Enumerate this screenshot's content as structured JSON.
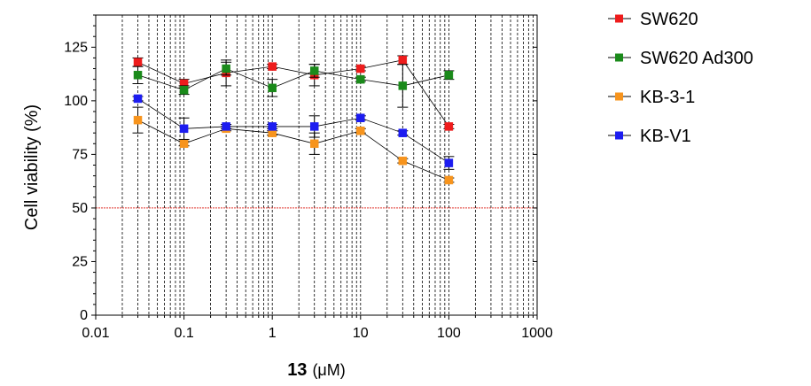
{
  "chart_data": {
    "type": "scatter",
    "xscale": "log",
    "xlim": [
      0.01,
      1000
    ],
    "ylim": [
      0,
      140
    ],
    "xticks": [
      0.01,
      0.1,
      1,
      10,
      100,
      1000
    ],
    "xtick_labels": [
      "0.01",
      "0.1",
      "1",
      "10",
      "100",
      "1000"
    ],
    "yticks": [
      0,
      25,
      50,
      75,
      100,
      125
    ],
    "ytick_labels": [
      "0",
      "25",
      "50",
      "75",
      "100",
      "125"
    ],
    "ylabel": "Cell viability (%)",
    "xlabel_compound": "13",
    "xlabel_unit": "(μM)",
    "grid": "vertical dashed",
    "reference_line": {
      "y": 50,
      "color": "#e0302a"
    },
    "legend_position": "right",
    "x": [
      0.03,
      0.1,
      0.3,
      1,
      3,
      10,
      30,
      100
    ],
    "series": [
      {
        "name": "SW620",
        "color": "#ee1c1c",
        "values": [
          118,
          108,
          113,
          116,
          112,
          115,
          119,
          88
        ],
        "errors": [
          2,
          2,
          6,
          1,
          5,
          1,
          2,
          1
        ]
      },
      {
        "name": "SW620 Ad300",
        "color": "#1a8a1a",
        "values": [
          112,
          105,
          115,
          106,
          114,
          110,
          107,
          112
        ],
        "errors": [
          4,
          2,
          3,
          4,
          3,
          1,
          10,
          2
        ]
      },
      {
        "name": "KB-3-1",
        "color": "#f7941d",
        "values": [
          91,
          80,
          87,
          85,
          80,
          86,
          72,
          63
        ],
        "errors": [
          6,
          1,
          1,
          1,
          5,
          1,
          1,
          1
        ]
      },
      {
        "name": "KB-V1",
        "color": "#1c1cf0",
        "values": [
          101,
          87,
          88,
          88,
          88,
          92,
          85,
          71
        ],
        "errors": [
          1,
          5,
          1,
          1,
          5,
          1,
          1,
          3
        ]
      }
    ]
  }
}
